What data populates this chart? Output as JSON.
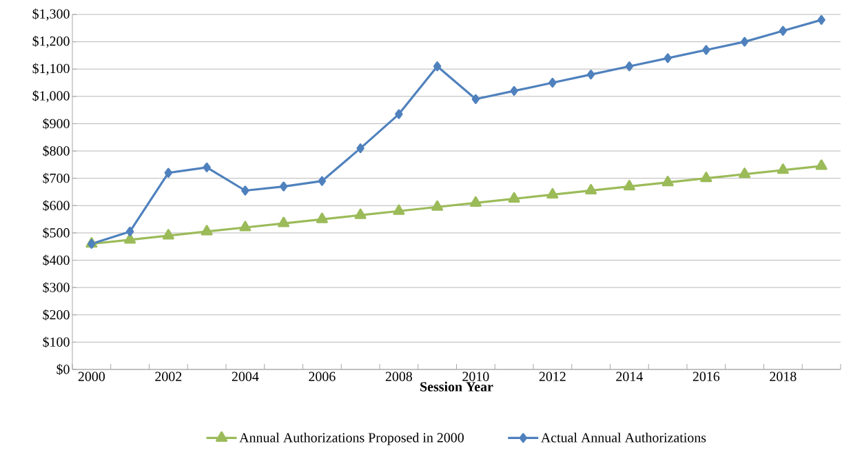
{
  "chart_data": {
    "type": "line",
    "xlabel": "Session Year",
    "categories": [
      "2000",
      null,
      "2002",
      null,
      "2004",
      null,
      "2006",
      null,
      "2008",
      null,
      "2010",
      null,
      "2012",
      null,
      "2014",
      null,
      "2016",
      null,
      "2018",
      null
    ],
    "series": [
      {
        "name": "Annual Authorizations Proposed in 2000",
        "color": "#9bbb59",
        "marker": "triangle",
        "values": [
          460,
          475,
          490,
          505,
          520,
          535,
          550,
          565,
          580,
          595,
          610,
          625,
          640,
          655,
          670,
          685,
          700,
          715,
          730,
          745
        ]
      },
      {
        "name": "Actual Annual Authorizations",
        "color": "#4f81bd",
        "marker": "diamond",
        "values": [
          460,
          505,
          720,
          740,
          655,
          670,
          690,
          810,
          935,
          1110,
          990,
          1020,
          1050,
          1080,
          1110,
          1140,
          1170,
          1200,
          1240,
          1280
        ]
      }
    ],
    "ylim": [
      0,
      1300
    ],
    "yticks": [
      {
        "value": 0,
        "label": "$0"
      },
      {
        "value": 100,
        "label": "$100"
      },
      {
        "value": 200,
        "label": "$200"
      },
      {
        "value": 300,
        "label": "$300"
      },
      {
        "value": 400,
        "label": "$400"
      },
      {
        "value": 500,
        "label": "$500"
      },
      {
        "value": 600,
        "label": "$600"
      },
      {
        "value": 700,
        "label": "$700"
      },
      {
        "value": 800,
        "label": "$800"
      },
      {
        "value": 900,
        "label": "$900"
      },
      {
        "value": 1000,
        "label": "$1,000"
      },
      {
        "value": 1100,
        "label": "$1,100"
      },
      {
        "value": 1200,
        "label": "$1,200"
      },
      {
        "value": 1300,
        "label": "$1,300"
      }
    ],
    "grid": "y",
    "legend": "bottom",
    "line_style": "solid"
  }
}
